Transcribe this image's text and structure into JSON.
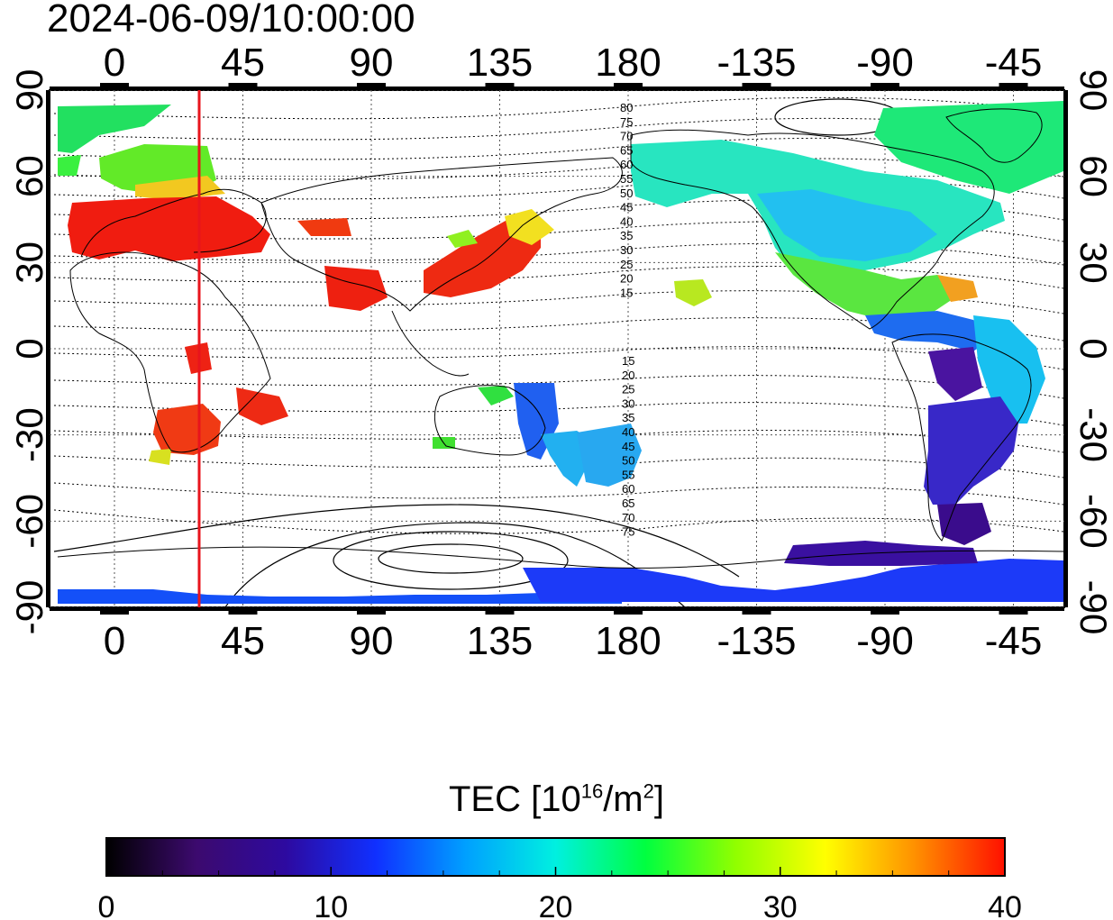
{
  "title": "2024-06-09/10:00:00",
  "map": {
    "top_lon_labels": [
      "0",
      "45",
      "90",
      "135",
      "180",
      "-135",
      "-90",
      "-45"
    ],
    "bottom_lon_labels": [
      "0",
      "45",
      "90",
      "135",
      "180",
      "-135",
      "-90",
      "-45"
    ],
    "left_lat_labels": [
      "90",
      "60",
      "30",
      "0",
      "-30",
      "-60",
      "-90"
    ],
    "right_lat_labels": [
      "90",
      "60",
      "30",
      "0",
      "-30",
      "-60",
      "-90"
    ],
    "contour_labels_north": [
      "80",
      "75",
      "70",
      "65",
      "60",
      "55",
      "50",
      "45",
      "40",
      "35",
      "30",
      "25",
      "20",
      "15"
    ],
    "contour_labels_south": [
      "15",
      "20",
      "25",
      "30",
      "35",
      "40",
      "45",
      "50",
      "55",
      "60",
      "65",
      "70",
      "75"
    ],
    "marker_line_color": "#e8141c"
  },
  "colorbar": {
    "label_prefix": "TEC  [10",
    "label_exp": "16",
    "label_mid": "/m",
    "label_exp2": "2",
    "label_suffix": "]",
    "ticks": [
      "0",
      "10",
      "20",
      "30",
      "40"
    ],
    "min": 0,
    "max": 40,
    "colors": [
      "#000000",
      "#3c0a6e",
      "#2d0aa0",
      "#1030ff",
      "#00a0ff",
      "#00f0e0",
      "#00ff40",
      "#90ff00",
      "#ffff00",
      "#ff9000",
      "#ff1000"
    ]
  }
}
